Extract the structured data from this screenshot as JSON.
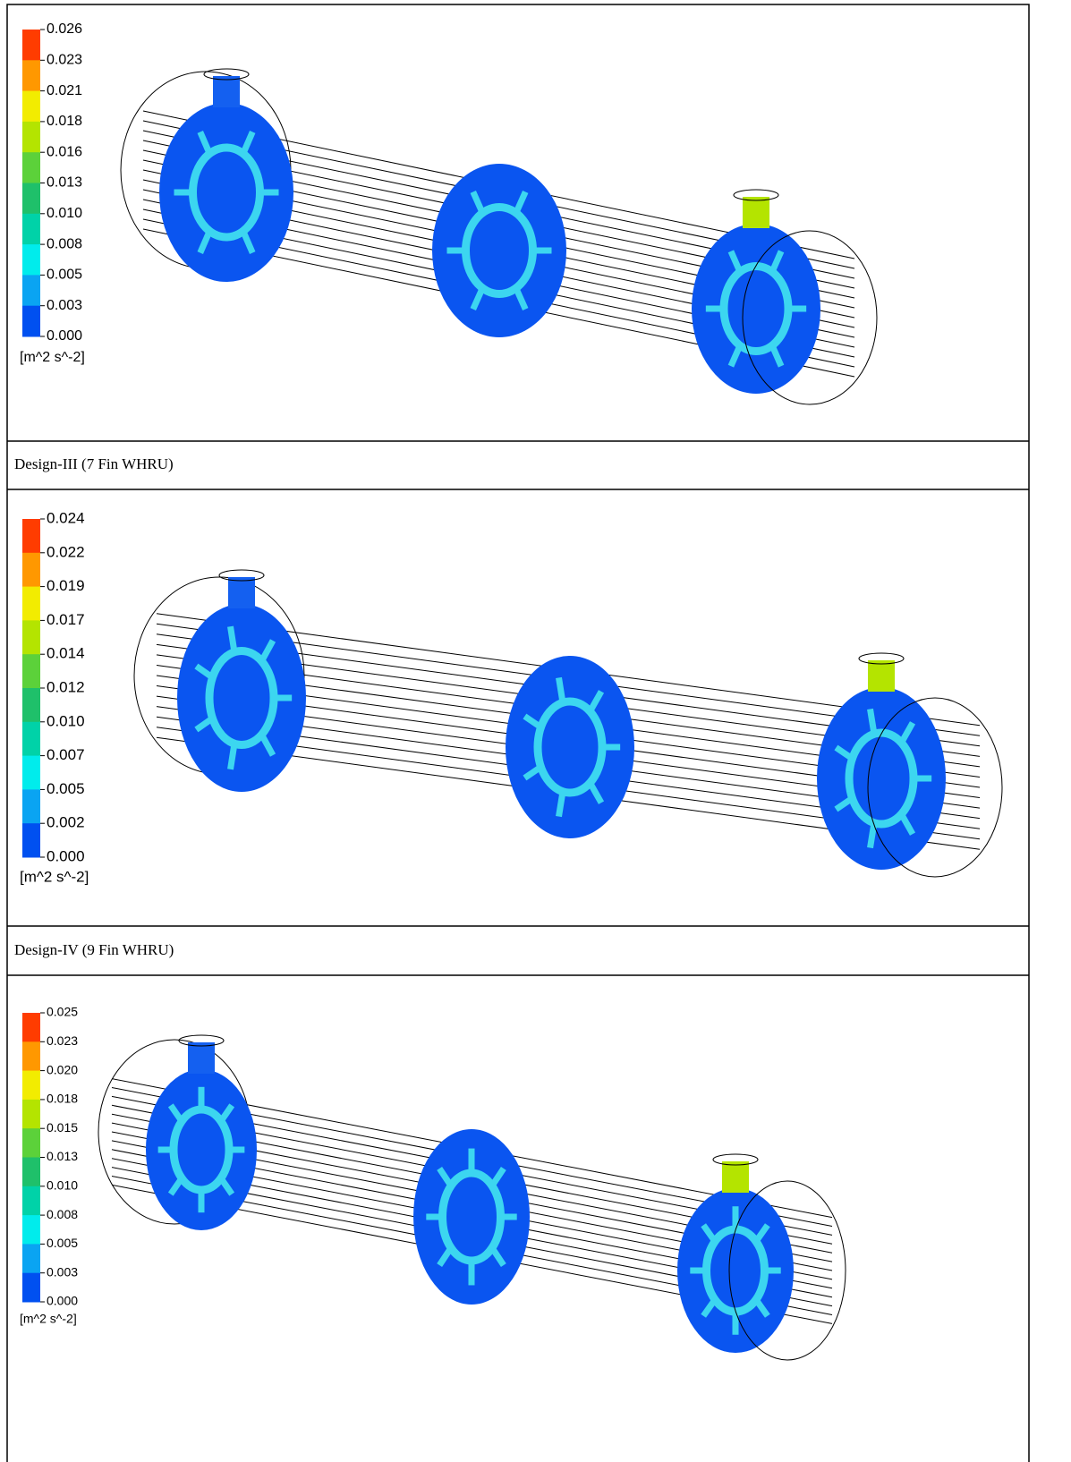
{
  "panels": [
    {
      "colorbar": {
        "labels": [
          "0.026",
          "0.023",
          "0.021",
          "0.018",
          "0.016",
          "0.013",
          "0.010",
          "0.008",
          "0.005",
          "0.003",
          "0.000"
        ],
        "unit": "[m^2 s^-2]"
      }
    },
    {
      "caption": "Design-III (7 Fin WHRU)",
      "colorbar": {
        "labels": [
          "0.024",
          "0.022",
          "0.019",
          "0.017",
          "0.014",
          "0.012",
          "0.010",
          "0.007",
          "0.005",
          "0.002",
          "0.000"
        ],
        "unit": "[m^2 s^-2]"
      }
    },
    {
      "caption": "Design-IV (9 Fin WHRU)",
      "colorbar": {
        "labels": [
          "0.025",
          "0.023",
          "0.020",
          "0.018",
          "0.015",
          "0.013",
          "0.010",
          "0.008",
          "0.005",
          "0.003",
          "0.000"
        ],
        "unit": "[m^2 s^-2]"
      }
    }
  ]
}
